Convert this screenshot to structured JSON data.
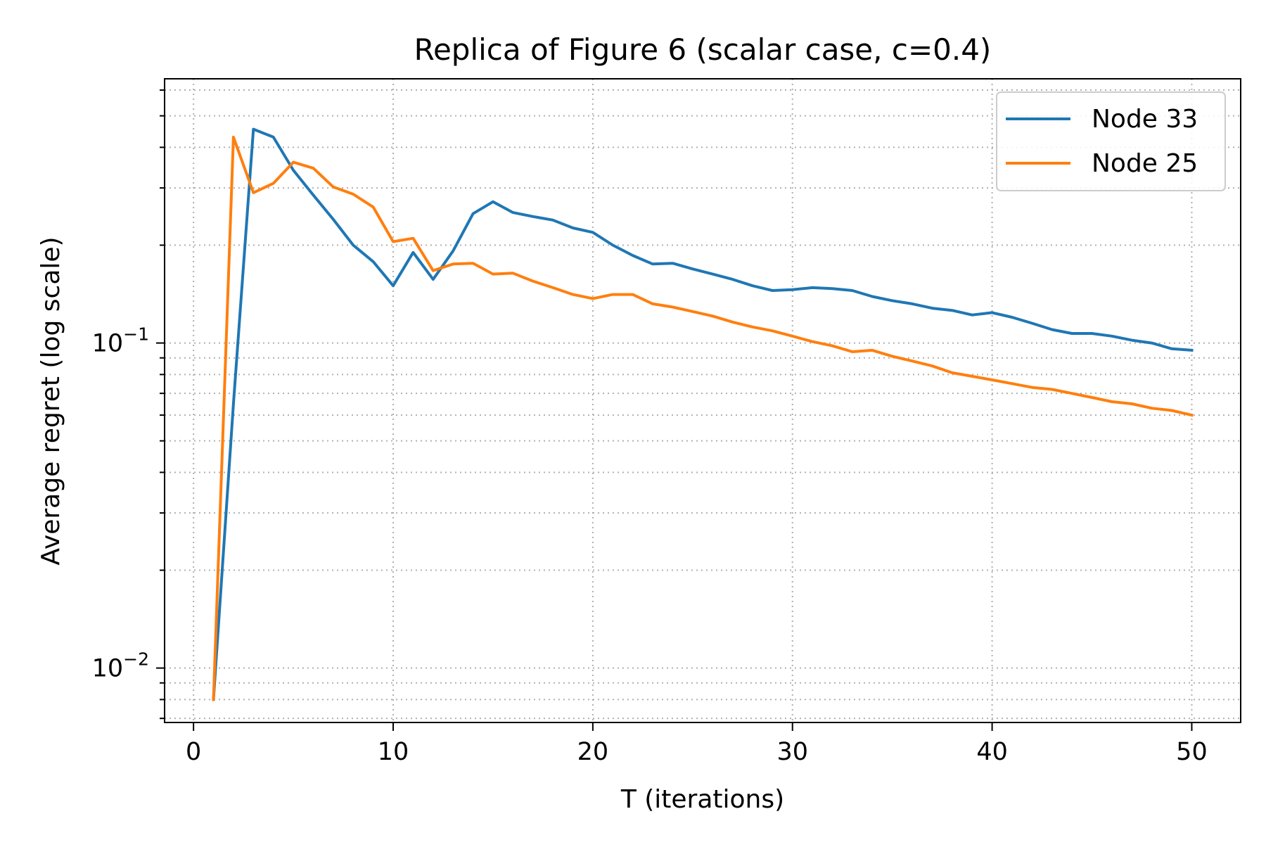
{
  "chart_data": {
    "type": "line",
    "title": "Replica of Figure 6 (scalar case, c=0.4)",
    "xlabel": "T (iterations)",
    "ylabel": "Average regret (log scale)",
    "xlim": [
      -1.45,
      52.45
    ],
    "ylim": [
      0.0068,
      0.65
    ],
    "yscale": "log",
    "x_ticks": [
      0,
      10,
      20,
      30,
      40,
      50
    ],
    "x_tick_labels": [
      "0",
      "10",
      "20",
      "30",
      "40",
      "50"
    ],
    "y_major_ticks": [
      0.01,
      0.1
    ],
    "y_tick_labels": [
      {
        "base": "10",
        "exp": "−2"
      },
      {
        "base": "10",
        "exp": "−1"
      }
    ],
    "grid": true,
    "legend_position": "top-right",
    "colors": {
      "node33": "#1f77b4",
      "node25": "#ff7f0e",
      "grid": "#b0b0b0"
    },
    "x": [
      1,
      2,
      3,
      4,
      5,
      6,
      7,
      8,
      9,
      10,
      11,
      12,
      13,
      14,
      15,
      16,
      17,
      18,
      19,
      20,
      21,
      22,
      23,
      24,
      25,
      26,
      27,
      28,
      29,
      30,
      31,
      32,
      33,
      34,
      35,
      36,
      37,
      38,
      39,
      40,
      41,
      42,
      43,
      44,
      45,
      46,
      47,
      48,
      49,
      50
    ],
    "series": [
      {
        "name": "Node 33",
        "color": "#1f77b4",
        "values": [
          0.008,
          0.065,
          0.455,
          0.43,
          0.34,
          0.285,
          0.24,
          0.2,
          0.178,
          0.15,
          0.19,
          0.157,
          0.192,
          0.25,
          0.272,
          0.252,
          0.245,
          0.239,
          0.226,
          0.219,
          0.2,
          0.186,
          0.175,
          0.176,
          0.169,
          0.163,
          0.157,
          0.15,
          0.145,
          0.146,
          0.148,
          0.147,
          0.145,
          0.139,
          0.135,
          0.132,
          0.128,
          0.126,
          0.122,
          0.124,
          0.12,
          0.115,
          0.11,
          0.107,
          0.107,
          0.105,
          0.102,
          0.1,
          0.096,
          0.095
        ]
      },
      {
        "name": "Node 25",
        "color": "#ff7f0e",
        "values": [
          0.008,
          0.43,
          0.29,
          0.31,
          0.36,
          0.345,
          0.302,
          0.287,
          0.262,
          0.205,
          0.21,
          0.167,
          0.175,
          0.176,
          0.163,
          0.164,
          0.155,
          0.148,
          0.141,
          0.137,
          0.141,
          0.141,
          0.132,
          0.129,
          0.125,
          0.121,
          0.116,
          0.112,
          0.109,
          0.105,
          0.101,
          0.098,
          0.094,
          0.095,
          0.091,
          0.088,
          0.085,
          0.081,
          0.079,
          0.077,
          0.075,
          0.073,
          0.072,
          0.07,
          0.068,
          0.066,
          0.065,
          0.063,
          0.062,
          0.06
        ]
      }
    ]
  }
}
